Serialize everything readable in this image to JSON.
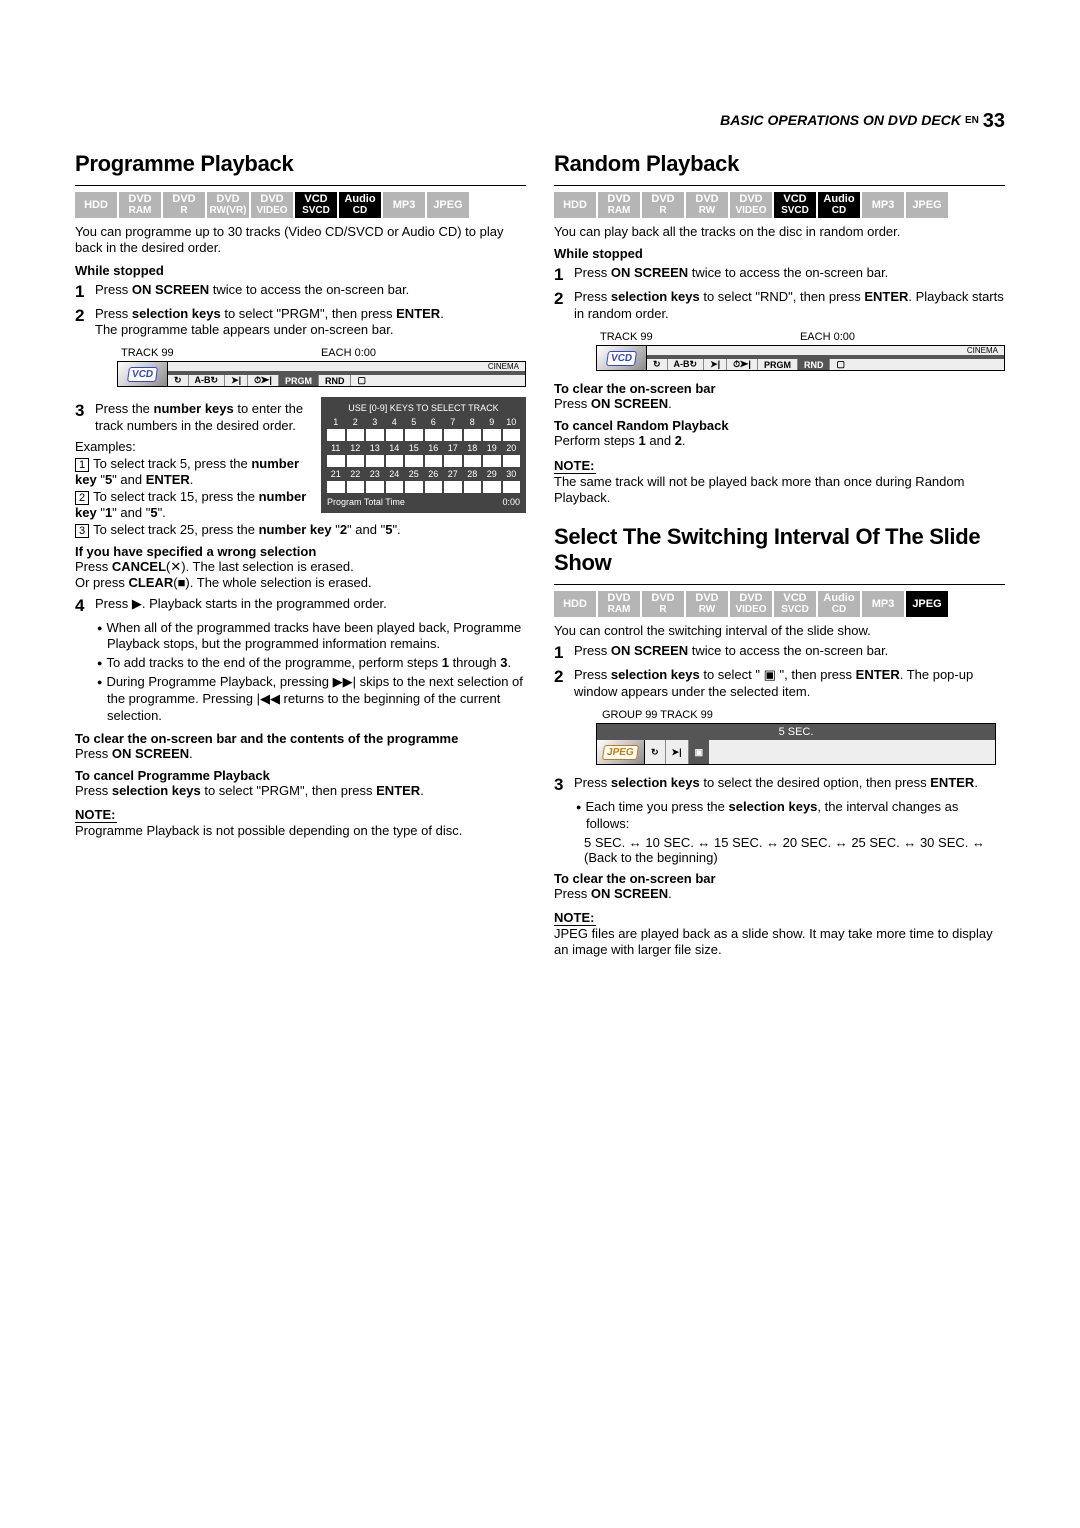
{
  "header": {
    "title": "BASIC OPERATIONS ON DVD DECK",
    "en": "EN",
    "page": "33"
  },
  "badges": {
    "all": [
      {
        "l1": "HDD"
      },
      {
        "l1": "DVD",
        "l2": "RAM"
      },
      {
        "l1": "DVD",
        "l2": "R"
      },
      {
        "l1": "DVD",
        "l2": "RW(VR)"
      },
      {
        "l1": "DVD",
        "l2": "VIDEO"
      },
      {
        "l1": "VCD",
        "l2": "SVCD"
      },
      {
        "l1": "Audio",
        "l2": "CD"
      },
      {
        "l1": "MP3"
      },
      {
        "l1": "JPEG"
      }
    ],
    "random": [
      {
        "l1": "HDD"
      },
      {
        "l1": "DVD",
        "l2": "RAM"
      },
      {
        "l1": "DVD",
        "l2": "R"
      },
      {
        "l1": "DVD",
        "l2": "RW"
      },
      {
        "l1": "DVD",
        "l2": "VIDEO"
      },
      {
        "l1": "VCD",
        "l2": "SVCD"
      },
      {
        "l1": "Audio",
        "l2": "CD"
      },
      {
        "l1": "MP3"
      },
      {
        "l1": "JPEG"
      }
    ],
    "grayIdx": {
      "prog": [
        0,
        1,
        2,
        3,
        4,
        7,
        8
      ],
      "rand": [
        0,
        1,
        2,
        3,
        4,
        7,
        8
      ],
      "slide": [
        0,
        1,
        2,
        3,
        4,
        5,
        6,
        7
      ]
    }
  },
  "left": {
    "title": "Programme Playback",
    "intro": "You can programme up to 30 tracks (Video CD/SVCD or Audio CD) to play back in the desired order.",
    "whileStopped": "While stopped",
    "step1": "Press ON SCREEN twice to access the on-screen bar.",
    "step2a": "Press selection keys to select \"PRGM\", then press ENTER.",
    "step2b": "The programme table appears under on-screen bar.",
    "osd": {
      "track": "TRACK 99",
      "each": "EACH 0:00",
      "disc": "VCD",
      "right": "CINEMA",
      "btns": [
        "↻",
        "A-B↻",
        "➤|",
        "⏱➤|",
        "PRGM",
        "RND",
        "▢"
      ]
    },
    "trackgrid": {
      "title": "USE [0-9] KEYS TO SELECT TRACK",
      "rows": 3,
      "cols": 10,
      "foot_l": "Program Total Time",
      "foot_r": "0:00"
    },
    "step3a": "Press the number keys to enter the track numbers in the desired order.",
    "examples": "Examples:",
    "ex1": "To select track 5, press the number key \"5\" and ENTER.",
    "ex2": "To select track 15, press the number key \"1\" and \"5\".",
    "ex3": "To select track 25, press the number key \"2\" and \"5\".",
    "wrong_h": "If you have specified a wrong selection",
    "wrong1": "Press CANCEL(✕). The last selection is erased.",
    "wrong2": "Or press CLEAR(■). The whole selection is erased.",
    "step4": "Press ▶. Playback starts in the programmed order.",
    "b1": "When all of the programmed tracks have been played back, Programme Playback stops, but the programmed information remains.",
    "b2": "To add tracks to the end of the programme, perform steps 1 through 3.",
    "b3": "During Programme Playback, pressing ▶▶| skips to the next selection of the programme. Pressing |◀◀ returns to the beginning of the current selection.",
    "clr_h": "To clear the on-screen bar and the contents of the programme",
    "clr": "Press ON SCREEN.",
    "cancel_h": "To cancel Programme Playback",
    "cancel": "Press selection keys to select \"PRGM\", then press ENTER.",
    "note_h": "NOTE:",
    "note": "Programme Playback is not possible depending on the type of disc."
  },
  "right": {
    "rand_title": "Random Playback",
    "rand_intro": "You can play back all the tracks on the disc in random order.",
    "whileStopped": "While stopped",
    "r1": "Press ON SCREEN twice to access the on-screen bar.",
    "r2": "Press selection keys to select \"RND\", then press ENTER. Playback starts in random order.",
    "osd": {
      "track": "TRACK 99",
      "each": "EACH 0:00",
      "disc": "VCD",
      "right": "CINEMA",
      "btns": [
        "↻",
        "A-B↻",
        "➤|",
        "⏱➤|",
        "PRGM",
        "RND",
        "▢"
      ]
    },
    "rclr_h": "To clear the on-screen bar",
    "rclr": "Press ON SCREEN.",
    "rcancel_h": "To cancel Random Playback",
    "rcancel": "Perform steps 1 and 2.",
    "rnote_h": "NOTE:",
    "rnote": "The same track will not be played back more than once during Random Playback.",
    "slide_title": "Select The Switching Interval Of The Slide Show",
    "slide_intro": "You can control the switching interval of the slide show.",
    "s1": "Press ON SCREEN twice to access the on-screen bar.",
    "s2": "Press selection keys to select \" ▣ \", then press ENTER. The pop-up window appears under the selected item.",
    "slide_osd": {
      "top": "GROUP 99   TRACK 99",
      "mid": "5 SEC.",
      "disc": "JPEG",
      "btns": [
        "↻",
        "➤|",
        "▣"
      ]
    },
    "s3": "Press selection keys to select the desired option, then press ENTER.",
    "sb1": "Each time you press the selection keys, the interval changes as follows:",
    "seq": "5 SEC. ↔ 10 SEC. ↔ 15 SEC. ↔ 20 SEC. ↔ 25 SEC. ↔ 30 SEC. ↔ (Back to the beginning)",
    "sclr_h": "To clear the on-screen bar",
    "sclr": "Press ON SCREEN.",
    "snote_h": "NOTE:",
    "snote": "JPEG files are played back as a slide show. It may take more time to display an image with larger file size."
  }
}
